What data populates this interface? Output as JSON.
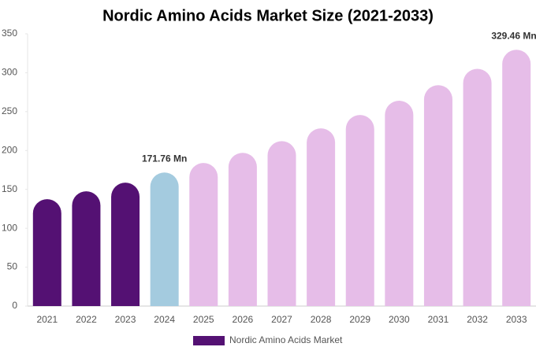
{
  "chart_data": {
    "type": "bar",
    "title": "Nordic Amino Acids Market Size (2021-2033)",
    "categories": [
      "2021",
      "2022",
      "2023",
      "2024",
      "2025",
      "2026",
      "2027",
      "2028",
      "2029",
      "2030",
      "2031",
      "2032",
      "2033"
    ],
    "series": [
      {
        "name": "Nordic Amino Acids Market",
        "color": "#541173",
        "values": [
          137.5,
          147.6,
          158.7,
          171.76,
          184,
          197,
          212,
          228.5,
          245.7,
          264,
          284,
          305,
          329.46
        ],
        "value_labels": [
          null,
          null,
          null,
          "171.76 Mn",
          null,
          null,
          null,
          null,
          null,
          null,
          null,
          null,
          "329.46 Mn"
        ],
        "colors": [
          "#541173",
          "#541173",
          "#541173",
          "#a4cbdf",
          "#e6bde8",
          "#e6bde8",
          "#e6bde8",
          "#e6bde8",
          "#e6bde8",
          "#e6bde8",
          "#e6bde8",
          "#e6bde8",
          "#e6bde8"
        ]
      }
    ],
    "ylim": [
      0,
      350
    ],
    "yticks": [
      0,
      50,
      100,
      150,
      200,
      250,
      300,
      350
    ],
    "grid": false,
    "legend": "bottom"
  }
}
